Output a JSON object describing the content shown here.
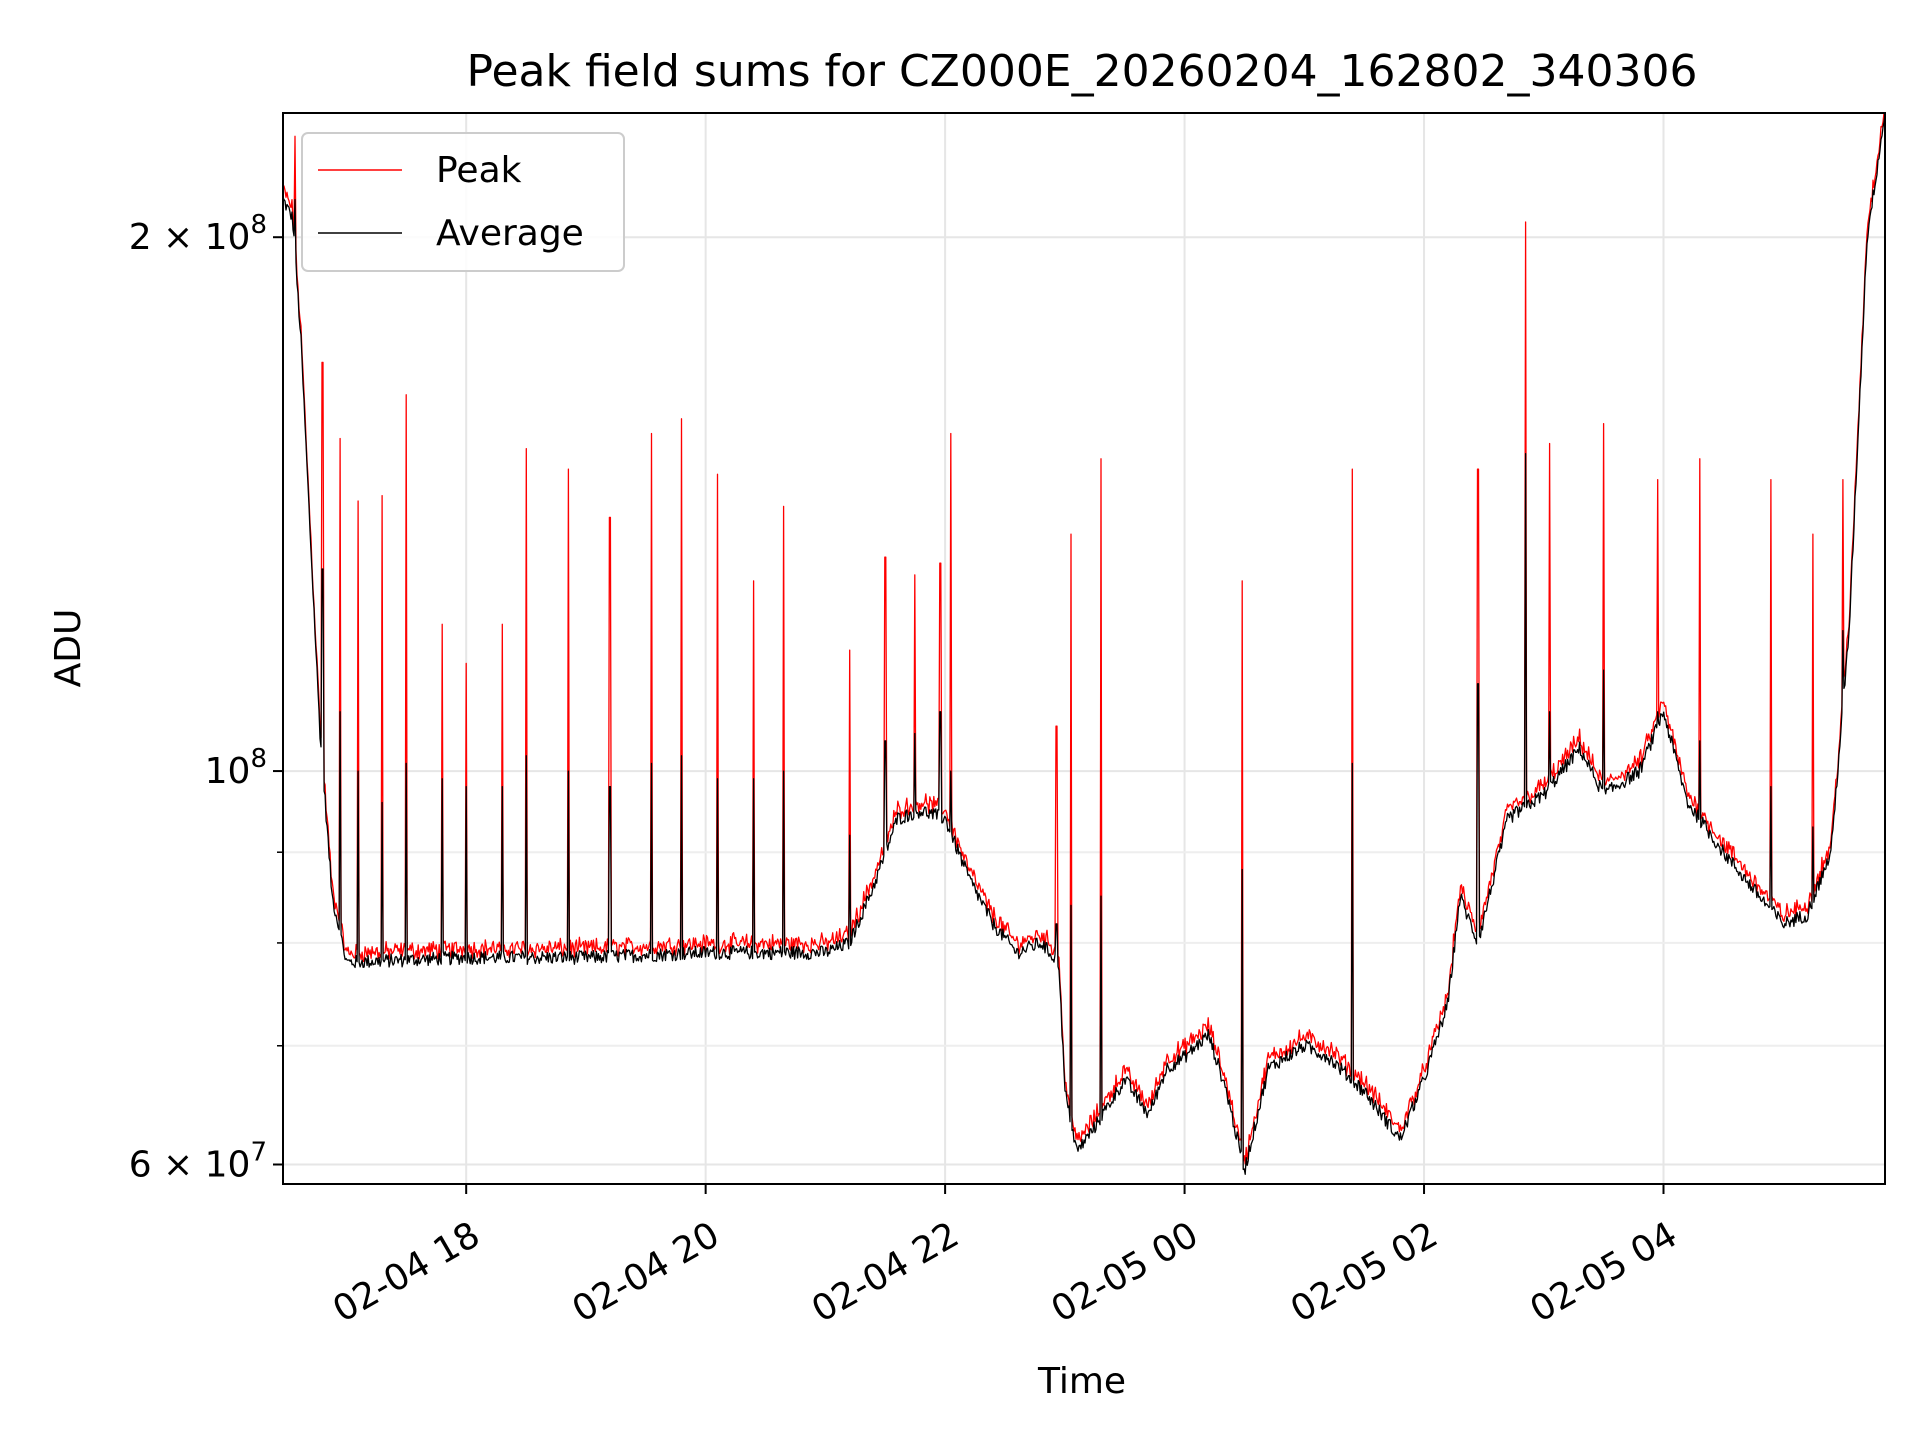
{
  "chart_data": {
    "type": "line",
    "title": "Peak field sums for CZ000E_20260204_162802_340306",
    "xlabel": "Time",
    "ylabel": "ADU",
    "yscale": "log",
    "ylim": [
      58500000,
      235000000
    ],
    "xlim_hours": [
      16.47,
      5.85
    ],
    "grid": true,
    "legend_position": "top-left",
    "x_ticks": [
      {
        "hour": 18,
        "label": "02-04 18"
      },
      {
        "hour": 20,
        "label": "02-04 20"
      },
      {
        "hour": 22,
        "label": "02-04 22"
      },
      {
        "hour": 24,
        "label": "02-05 00"
      },
      {
        "hour": 26,
        "label": "02-05 02"
      },
      {
        "hour": 28,
        "label": "02-05 04"
      }
    ],
    "y_major_ticks": [
      {
        "value": 60000000,
        "base": "6",
        "exp": "7"
      },
      {
        "value": 100000000,
        "base": "",
        "exp": "8"
      },
      {
        "value": 200000000,
        "base": "2",
        "exp": "8"
      }
    ],
    "y_minor_ticks": [
      70000000,
      80000000,
      90000000
    ],
    "baseline_keypoints": [
      [
        16.47,
        210000000
      ],
      [
        16.55,
        205000000
      ],
      [
        16.62,
        175000000
      ],
      [
        16.7,
        135000000
      ],
      [
        16.78,
        105000000
      ],
      [
        16.88,
        85000000
      ],
      [
        17.0,
        78000000
      ],
      [
        18.0,
        78500000
      ],
      [
        19.0,
        78500000
      ],
      [
        20.0,
        79000000
      ],
      [
        21.0,
        79000000
      ],
      [
        21.2,
        80000000
      ],
      [
        21.4,
        86000000
      ],
      [
        21.6,
        94000000
      ],
      [
        21.8,
        95000000
      ],
      [
        22.0,
        94000000
      ],
      [
        22.2,
        87000000
      ],
      [
        22.4,
        82000000
      ],
      [
        22.6,
        79000000
      ],
      [
        22.8,
        80000000
      ],
      [
        22.95,
        78000000
      ],
      [
        23.0,
        66000000
      ],
      [
        23.1,
        61000000
      ],
      [
        23.25,
        63000000
      ],
      [
        23.5,
        67000000
      ],
      [
        23.7,
        64000000
      ],
      [
        23.85,
        68000000
      ],
      [
        24.0,
        69000000
      ],
      [
        24.2,
        71000000
      ],
      [
        24.35,
        66000000
      ],
      [
        24.5,
        59500000
      ],
      [
        24.7,
        68000000
      ],
      [
        25.0,
        70000000
      ],
      [
        25.2,
        69000000
      ],
      [
        25.5,
        66000000
      ],
      [
        25.8,
        62000000
      ],
      [
        26.0,
        67000000
      ],
      [
        26.2,
        74000000
      ],
      [
        26.3,
        85000000
      ],
      [
        26.45,
        80000000
      ],
      [
        26.7,
        94000000
      ],
      [
        27.0,
        97000000
      ],
      [
        27.3,
        103000000
      ],
      [
        27.5,
        97000000
      ],
      [
        27.8,
        100000000
      ],
      [
        28.0,
        108000000
      ],
      [
        28.2,
        96000000
      ],
      [
        28.5,
        90000000
      ],
      [
        28.8,
        85000000
      ],
      [
        29.0,
        82000000
      ],
      [
        29.2,
        83000000
      ],
      [
        29.4,
        90000000
      ],
      [
        29.55,
        120000000
      ],
      [
        29.7,
        200000000
      ],
      [
        29.85,
        235000000
      ]
    ],
    "peak_spikes": [
      {
        "hour": 16.57,
        "peak": 228000000,
        "avg": 210000000
      },
      {
        "hour": 16.8,
        "peak": 170000000,
        "avg": 130000000
      },
      {
        "hour": 16.95,
        "peak": 154000000,
        "avg": 108000000
      },
      {
        "hour": 17.1,
        "peak": 142000000,
        "avg": 100000000
      },
      {
        "hour": 17.3,
        "peak": 143000000,
        "avg": 96000000
      },
      {
        "hour": 17.5,
        "peak": 163000000,
        "avg": 101000000
      },
      {
        "hour": 17.8,
        "peak": 121000000,
        "avg": 99000000
      },
      {
        "hour": 18.0,
        "peak": 115000000,
        "avg": 98000000
      },
      {
        "hour": 18.3,
        "peak": 121000000,
        "avg": 98000000
      },
      {
        "hour": 18.5,
        "peak": 152000000,
        "avg": 102000000
      },
      {
        "hour": 18.85,
        "peak": 148000000,
        "avg": 100000000
      },
      {
        "hour": 19.2,
        "peak": 139000000,
        "avg": 98000000
      },
      {
        "hour": 19.55,
        "peak": 155000000,
        "avg": 101000000
      },
      {
        "hour": 19.8,
        "peak": 158000000,
        "avg": 102000000
      },
      {
        "hour": 20.1,
        "peak": 147000000,
        "avg": 99000000
      },
      {
        "hour": 20.4,
        "peak": 128000000,
        "avg": 99000000
      },
      {
        "hour": 20.65,
        "peak": 141000000,
        "avg": 100000000
      },
      {
        "hour": 21.2,
        "peak": 117000000,
        "avg": 92000000
      },
      {
        "hour": 21.5,
        "peak": 132000000,
        "avg": 104000000
      },
      {
        "hour": 21.75,
        "peak": 129000000,
        "avg": 105000000
      },
      {
        "hour": 21.96,
        "peak": 131000000,
        "avg": 108000000
      },
      {
        "hour": 22.05,
        "peak": 155000000,
        "avg": 100000000
      },
      {
        "hour": 22.93,
        "peak": 106000000,
        "avg": 82000000
      },
      {
        "hour": 23.05,
        "peak": 136000000,
        "avg": 84000000
      },
      {
        "hour": 23.3,
        "peak": 150000000,
        "avg": 85000000
      },
      {
        "hour": 24.48,
        "peak": 128000000,
        "avg": 88000000
      },
      {
        "hour": 25.4,
        "peak": 148000000,
        "avg": 101000000
      },
      {
        "hour": 26.45,
        "peak": 148000000,
        "avg": 112000000
      },
      {
        "hour": 26.85,
        "peak": 204000000,
        "avg": 151000000
      },
      {
        "hour": 27.05,
        "peak": 153000000,
        "avg": 108000000
      },
      {
        "hour": 27.5,
        "peak": 157000000,
        "avg": 114000000
      },
      {
        "hour": 27.95,
        "peak": 146000000,
        "avg": 108000000
      },
      {
        "hour": 28.3,
        "peak": 150000000,
        "avg": 104000000
      },
      {
        "hour": 28.9,
        "peak": 146000000,
        "avg": 98000000
      },
      {
        "hour": 29.25,
        "peak": 136000000,
        "avg": 93000000
      },
      {
        "hour": 29.5,
        "peak": 146000000,
        "avg": 120000000
      }
    ],
    "series": [
      {
        "name": "Peak",
        "color": "#ff0000",
        "line_width": 1
      },
      {
        "name": "Average",
        "color": "#000000",
        "line_width": 1
      }
    ]
  }
}
